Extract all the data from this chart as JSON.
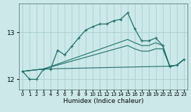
{
  "xlabel": "Humidex (Indice chaleur)",
  "bg_color": "#cce8e8",
  "grid_color": "#aacfcf",
  "line_color": "#1a6e6a",
  "xlim": [
    -0.5,
    23.5
  ],
  "ylim": [
    11.78,
    13.62
  ],
  "yticks": [
    12,
    13
  ],
  "xticks": [
    0,
    1,
    2,
    3,
    4,
    5,
    6,
    7,
    8,
    9,
    10,
    11,
    12,
    13,
    14,
    15,
    16,
    17,
    18,
    19,
    20,
    21,
    22,
    23
  ],
  "series1_x": [
    0,
    1,
    2,
    3,
    4,
    5,
    6,
    7,
    8,
    9,
    10,
    11,
    12,
    13,
    14,
    15,
    16,
    17,
    18,
    19,
    20,
    21,
    22,
    23
  ],
  "series1_y": [
    12.17,
    12.0,
    12.0,
    12.22,
    12.22,
    12.62,
    12.52,
    12.7,
    12.88,
    13.05,
    13.12,
    13.18,
    13.18,
    13.25,
    13.28,
    13.42,
    13.08,
    12.82,
    12.82,
    12.88,
    12.72,
    12.28,
    12.3,
    12.42
  ],
  "series2_x": [
    0,
    3,
    15,
    16,
    17,
    18,
    19,
    20,
    21,
    22,
    23
  ],
  "series2_y": [
    12.17,
    12.22,
    12.85,
    12.78,
    12.72,
    12.72,
    12.78,
    12.72,
    12.28,
    12.3,
    12.42
  ],
  "series3_x": [
    0,
    3,
    21,
    22,
    23
  ],
  "series3_y": [
    12.17,
    12.22,
    12.28,
    12.3,
    12.42
  ],
  "series4_x": [
    0,
    3,
    15,
    16,
    17,
    18,
    19,
    20,
    21,
    22,
    23
  ],
  "series4_y": [
    12.17,
    12.22,
    12.72,
    12.65,
    12.6,
    12.6,
    12.65,
    12.65,
    12.28,
    12.3,
    12.42
  ]
}
